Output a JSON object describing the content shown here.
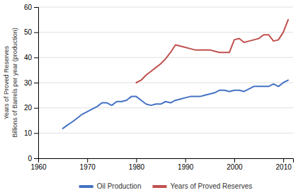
{
  "chart_data": {
    "type": "line",
    "ylabel": [
      "Years of Proved Reserves",
      "Billions of Barrels per year (production)"
    ],
    "x": [
      1965,
      1966,
      1967,
      1968,
      1969,
      1970,
      1971,
      1972,
      1973,
      1974,
      1975,
      1976,
      1977,
      1978,
      1979,
      1980,
      1981,
      1982,
      1983,
      1984,
      1985,
      1986,
      1987,
      1988,
      1989,
      1990,
      1991,
      1992,
      1993,
      1994,
      1995,
      1996,
      1997,
      1998,
      1999,
      2000,
      2001,
      2002,
      2003,
      2004,
      2005,
      2006,
      2007,
      2008,
      2009,
      2010,
      2011
    ],
    "series": [
      {
        "name": "Oil Production",
        "color": "#4472C4",
        "values": [
          11.8,
          13.2,
          14.5,
          16.0,
          17.5,
          18.5,
          19.5,
          20.5,
          22.0,
          22.0,
          21.0,
          22.5,
          22.5,
          23.0,
          24.5,
          24.5,
          23.0,
          21.5,
          21.0,
          21.5,
          21.5,
          22.5,
          22.0,
          23.0,
          23.5,
          24.0,
          24.5,
          24.5,
          24.5,
          25.0,
          25.5,
          26.0,
          27.0,
          27.0,
          26.5,
          27.0,
          27.0,
          26.5,
          27.5,
          28.5,
          28.5,
          28.5,
          28.5,
          29.5,
          28.5,
          30.0,
          31.0
        ]
      },
      {
        "name": "Years of Proved Reserves",
        "color": "#C0504D",
        "values": [
          null,
          null,
          null,
          null,
          null,
          null,
          null,
          null,
          null,
          null,
          null,
          null,
          null,
          null,
          null,
          30.0,
          31.0,
          33.0,
          34.5,
          36.0,
          37.5,
          39.5,
          42.0,
          45.0,
          44.5,
          44.0,
          43.5,
          43.0,
          43.0,
          43.0,
          43.0,
          42.5,
          42.0,
          42.0,
          42.0,
          47.0,
          47.5,
          46.0,
          46.5,
          47.0,
          47.5,
          49.0,
          49.0,
          46.5,
          47.0,
          50.0,
          55.0
        ]
      }
    ],
    "xlim": [
      1960,
      2012
    ],
    "ylim": [
      0,
      60
    ],
    "xticks": [
      1960,
      1970,
      1980,
      1990,
      2000,
      2010
    ],
    "yticks": [
      0,
      10,
      20,
      30,
      40,
      50,
      60
    ],
    "grid": true,
    "legend": "bottom"
  }
}
